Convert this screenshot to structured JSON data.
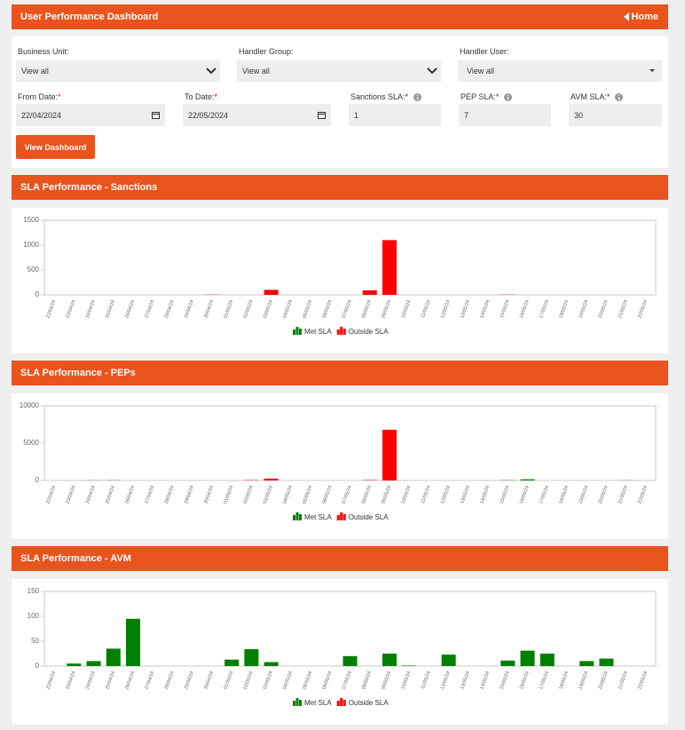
{
  "header": {
    "title": "User Performance Dashboard",
    "home": "Home"
  },
  "form": {
    "row1": [
      {
        "label": "Business Unit:",
        "value": "View all"
      },
      {
        "label": "Handler Group:",
        "value": "View all"
      },
      {
        "label": "Handler User:",
        "value": "View all"
      }
    ],
    "row2": [
      {
        "label": "From Date:",
        "required": "*",
        "value": "22/04/2024"
      },
      {
        "label": "To Date:",
        "required": "*",
        "value": "22/05/2024"
      },
      {
        "label": "Sanctions SLA:",
        "required": "*",
        "value": "1"
      },
      {
        "label": "PEP SLA:",
        "required": "*",
        "value": "7"
      },
      {
        "label": "AVM SLA:",
        "required": "*",
        "value": "30"
      }
    ],
    "button": "View Dashboard"
  },
  "chart_data": [
    {
      "type": "bar",
      "stacked": true,
      "title": "SLA Performance - Sanctions",
      "categories": [
        "22/04/24",
        "23/04/24",
        "24/04/24",
        "25/04/24",
        "26/04/24",
        "27/04/24",
        "28/04/24",
        "29/04/24",
        "30/04/24",
        "01/05/24",
        "02/05/24",
        "03/05/24",
        "04/05/24",
        "05/05/24",
        "06/05/24",
        "07/05/24",
        "08/05/24",
        "09/05/24",
        "10/05/24",
        "11/05/24",
        "12/05/24",
        "13/05/24",
        "14/05/24",
        "15/05/24",
        "16/05/24",
        "17/05/24",
        "18/05/24",
        "19/05/24",
        "20/05/24",
        "21/05/24",
        "22/05/24"
      ],
      "series": [
        {
          "name": "Met SLA",
          "color": "#008000",
          "values": [
            0,
            0,
            0,
            0,
            0,
            0,
            0,
            0,
            0,
            0,
            0,
            0,
            0,
            0,
            0,
            0,
            0,
            0,
            0,
            0,
            0,
            0,
            0,
            0,
            0,
            0,
            0,
            0,
            0,
            0,
            0
          ]
        },
        {
          "name": "Outside SLA",
          "color": "#ff0000",
          "values": [
            0,
            0,
            0,
            0,
            0,
            0,
            0,
            0,
            5,
            0,
            0,
            100,
            0,
            0,
            0,
            0,
            90,
            1100,
            0,
            0,
            0,
            0,
            0,
            5,
            0,
            0,
            0,
            0,
            0,
            0,
            0
          ]
        }
      ],
      "ylim": [
        0,
        1500
      ],
      "yticks": [
        0,
        500,
        1000,
        1500
      ]
    },
    {
      "type": "bar",
      "stacked": true,
      "title": "SLA Performance - PEPs",
      "categories": [
        "22/04/24",
        "23/04/24",
        "24/04/24",
        "25/04/24",
        "26/04/24",
        "27/04/24",
        "28/04/24",
        "29/04/24",
        "30/04/24",
        "01/05/24",
        "02/05/24",
        "03/05/24",
        "04/05/24",
        "05/05/24",
        "06/05/24",
        "07/05/24",
        "08/05/24",
        "09/05/24",
        "10/05/24",
        "11/05/24",
        "12/05/24",
        "13/05/24",
        "14/05/24",
        "15/05/24",
        "16/05/24",
        "17/05/24",
        "18/05/24",
        "19/05/24",
        "20/05/24",
        "21/05/24",
        "22/05/24"
      ],
      "series": [
        {
          "name": "Met SLA",
          "color": "#008000",
          "values": [
            0,
            0,
            20,
            0,
            0,
            0,
            0,
            0,
            0,
            0,
            0,
            0,
            0,
            0,
            0,
            0,
            0,
            0,
            0,
            0,
            0,
            0,
            0,
            40,
            150,
            0,
            0,
            0,
            0,
            20,
            0
          ]
        },
        {
          "name": "Outside SLA",
          "color": "#ff0000",
          "values": [
            0,
            0,
            0,
            30,
            0,
            0,
            0,
            0,
            0,
            0,
            50,
            250,
            0,
            0,
            0,
            0,
            60,
            6800,
            0,
            0,
            0,
            0,
            0,
            0,
            0,
            0,
            0,
            0,
            0,
            0,
            0
          ]
        }
      ],
      "ylim": [
        0,
        10000
      ],
      "yticks": [
        0,
        5000,
        10000
      ]
    },
    {
      "type": "bar",
      "stacked": true,
      "title": "SLA Performance - AVM",
      "categories": [
        "22/04/24",
        "23/04/24",
        "24/04/24",
        "25/04/24",
        "26/04/24",
        "27/04/24",
        "28/04/24",
        "29/04/24",
        "30/04/24",
        "01/05/24",
        "02/05/24",
        "03/05/24",
        "04/05/24",
        "05/05/24",
        "06/05/24",
        "07/05/24",
        "08/05/24",
        "09/05/24",
        "10/05/24",
        "11/05/24",
        "12/05/24",
        "13/05/24",
        "14/05/24",
        "15/05/24",
        "16/05/24",
        "17/05/24",
        "18/05/24",
        "19/05/24",
        "20/05/24",
        "21/05/24",
        "22/05/24"
      ],
      "series": [
        {
          "name": "Met SLA",
          "color": "#008000",
          "values": [
            0,
            5,
            10,
            35,
            95,
            0,
            0,
            0,
            0,
            13,
            34,
            8,
            0,
            0,
            0,
            20,
            0,
            25,
            1,
            0,
            23,
            0,
            0,
            11,
            31,
            25,
            0,
            10,
            15,
            0,
            0
          ]
        },
        {
          "name": "Outside SLA",
          "color": "#ff0000",
          "values": [
            0,
            0,
            0,
            0,
            0,
            0,
            0,
            0,
            0,
            0,
            0,
            0,
            0,
            0,
            0,
            0,
            0,
            0,
            0,
            0,
            0,
            0,
            0,
            0,
            0,
            0,
            0,
            0,
            0,
            0,
            0
          ]
        }
      ],
      "ylim": [
        0,
        150
      ],
      "yticks": [
        0,
        50,
        100,
        150
      ]
    }
  ]
}
